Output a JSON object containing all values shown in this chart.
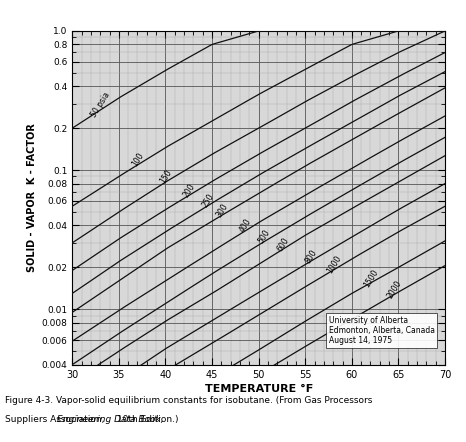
{
  "xlabel": "TEMPERATURE °F",
  "ylabel": "SOLID - VAPOR  K - FACTOR",
  "xmin": 30,
  "xmax": 70,
  "ymin": 0.004,
  "ymax": 1.0,
  "xticks": [
    30,
    35,
    40,
    45,
    50,
    55,
    60,
    65,
    70
  ],
  "annotation": "University of Alberta\nEdmonton, Alberta, Canada\nAugust 14, 1975",
  "pressures": [
    50,
    100,
    150,
    200,
    250,
    300,
    400,
    500,
    600,
    800,
    1000,
    1500,
    2000
  ],
  "pressure_labels": [
    "50 psia",
    "100",
    "150",
    "200",
    "250",
    "300",
    "400",
    "500",
    "600",
    "800",
    "1000",
    "1500",
    "2000"
  ],
  "line_color": "#111111",
  "bg_color": "#d8d8d8",
  "grid_major_color": "#555555",
  "grid_minor_color": "#aaaaaa",
  "K_data": {
    "50": {
      "T": [
        30,
        35,
        40,
        45,
        50,
        55,
        60,
        65,
        70
      ],
      "K": [
        0.2,
        0.33,
        0.52,
        0.8,
        1.0,
        1.0,
        1.0,
        1.0,
        1.0
      ]
    },
    "100": {
      "T": [
        30,
        35,
        40,
        45,
        50,
        55,
        60,
        65,
        70
      ],
      "K": [
        0.055,
        0.09,
        0.145,
        0.225,
        0.35,
        0.53,
        0.8,
        1.0,
        1.0
      ]
    },
    "150": {
      "T": [
        30,
        35,
        40,
        45,
        50,
        55,
        60,
        65,
        70
      ],
      "K": [
        0.03,
        0.05,
        0.082,
        0.13,
        0.2,
        0.31,
        0.47,
        0.7,
        1.0
      ]
    },
    "200": {
      "T": [
        30,
        35,
        40,
        45,
        50,
        55,
        60,
        65,
        70
      ],
      "K": [
        0.019,
        0.032,
        0.052,
        0.083,
        0.13,
        0.2,
        0.31,
        0.47,
        0.7
      ]
    },
    "250": {
      "T": [
        30,
        35,
        40,
        45,
        50,
        55,
        60,
        65,
        70
      ],
      "K": [
        0.013,
        0.022,
        0.036,
        0.058,
        0.092,
        0.143,
        0.22,
        0.34,
        0.51
      ]
    },
    "300": {
      "T": [
        30,
        35,
        40,
        45,
        50,
        55,
        60,
        65,
        70
      ],
      "K": [
        0.0095,
        0.016,
        0.027,
        0.043,
        0.068,
        0.107,
        0.165,
        0.255,
        0.39
      ]
    },
    "400": {
      "T": [
        30,
        35,
        40,
        45,
        50,
        55,
        60,
        65,
        70
      ],
      "K": [
        0.0059,
        0.0098,
        0.016,
        0.026,
        0.042,
        0.066,
        0.103,
        0.16,
        0.245
      ]
    },
    "500": {
      "T": [
        30,
        35,
        40,
        45,
        50,
        55,
        60,
        65,
        70
      ],
      "K": [
        0.004,
        0.0067,
        0.011,
        0.018,
        0.029,
        0.046,
        0.072,
        0.112,
        0.172
      ]
    },
    "600": {
      "T": [
        30,
        35,
        40,
        45,
        50,
        55,
        60,
        65,
        70
      ],
      "K": [
        0.003,
        0.005,
        0.0082,
        0.013,
        0.021,
        0.034,
        0.053,
        0.082,
        0.127
      ]
    },
    "800": {
      "T": [
        30,
        35,
        40,
        45,
        50,
        55,
        60,
        65,
        70
      ],
      "K": [
        0.0019,
        0.0031,
        0.0052,
        0.0083,
        0.0132,
        0.021,
        0.033,
        0.052,
        0.08
      ]
    },
    "1000": {
      "T": [
        30,
        35,
        40,
        45,
        50,
        55,
        60,
        65,
        70
      ],
      "K": [
        0.0013,
        0.0022,
        0.0036,
        0.0057,
        0.0091,
        0.0145,
        0.023,
        0.036,
        0.055
      ]
    },
    "1500": {
      "T": [
        30,
        35,
        40,
        45,
        50,
        55,
        60,
        65,
        70
      ],
      "K": [
        0.00073,
        0.00122,
        0.002,
        0.0032,
        0.0051,
        0.0082,
        0.013,
        0.02,
        0.031
      ]
    },
    "2000": {
      "T": [
        30,
        35,
        40,
        45,
        50,
        55,
        60,
        65,
        70
      ],
      "K": [
        0.00048,
        0.0008,
        0.00132,
        0.0021,
        0.0034,
        0.0054,
        0.0085,
        0.0133,
        0.0206
      ]
    }
  },
  "ytick_vals": [
    0.004,
    0.006,
    0.008,
    0.01,
    0.02,
    0.04,
    0.06,
    0.08,
    0.1,
    0.2,
    0.4,
    0.6,
    0.8,
    1.0
  ],
  "ytick_labels": [
    "0.004",
    "0.006",
    "0.008",
    "0.01",
    "0.02",
    "0.04",
    "0.06",
    "0.08",
    "0.1",
    "0.2",
    "0.4",
    "0.6",
    "0.8",
    "1.0"
  ],
  "label_positions": [
    [
      33.5,
      "50",
      "50 psia",
      58
    ],
    [
      37.5,
      "100",
      "100",
      58
    ],
    [
      40.5,
      "150",
      "150",
      58
    ],
    [
      43.0,
      "200",
      "200",
      58
    ],
    [
      45.0,
      "250",
      "250",
      58
    ],
    [
      46.5,
      "300",
      "300",
      58
    ],
    [
      49.0,
      "400",
      "400",
      58
    ],
    [
      51.0,
      "500",
      "500",
      58
    ],
    [
      53.0,
      "600",
      "600",
      58
    ],
    [
      56.0,
      "800",
      "800",
      58
    ],
    [
      58.5,
      "1000",
      "1000",
      58
    ],
    [
      62.5,
      "1500",
      "1500",
      58
    ],
    [
      65.0,
      "2000",
      "2000",
      58
    ]
  ]
}
